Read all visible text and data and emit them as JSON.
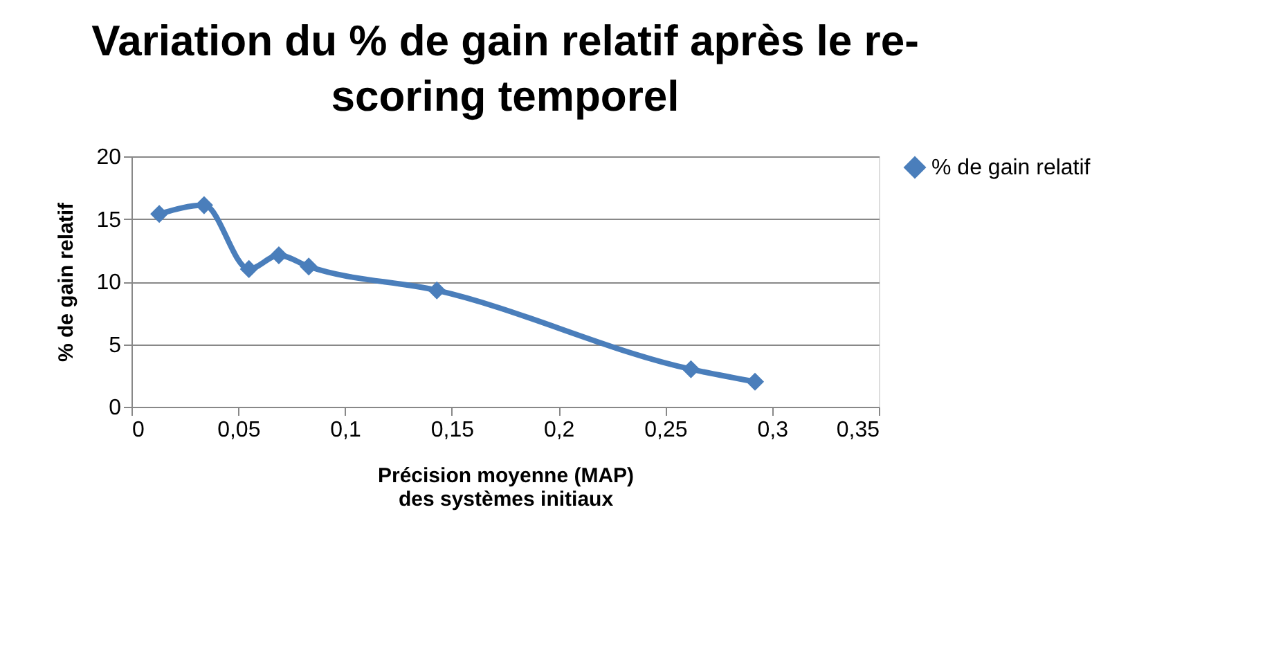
{
  "chart_data": {
    "type": "line",
    "title": "Variation du % de gain relatif après le re-scoring temporel",
    "xlabel": "Précision moyenne (MAP) des systèmes initiaux",
    "ylabel": "% de gain relatif",
    "x": [
      0.013,
      0.034,
      0.055,
      0.069,
      0.083,
      0.143,
      0.262,
      0.292
    ],
    "series": [
      {
        "name": "% de gain relatif",
        "color": "#4a7ebb",
        "values": [
          15.4,
          16.1,
          11.0,
          12.1,
          11.2,
          9.3,
          3.0,
          2.0
        ]
      }
    ],
    "xlim": [
      0,
      0.35
    ],
    "xticks": [
      0,
      {
        "value": 0.05,
        "label": "0,05"
      },
      {
        "value": 0.1,
        "label": "0,1"
      },
      {
        "value": 0.15,
        "label": "0,15"
      },
      {
        "value": 0.2,
        "label": "0,2"
      },
      {
        "value": 0.25,
        "label": "0,25"
      },
      {
        "value": 0.3,
        "label": "0,3"
      },
      {
        "value": 0.35,
        "label": "0,35"
      }
    ],
    "ylim": [
      0,
      20
    ],
    "yticks": [
      0,
      5,
      10,
      15,
      20
    ],
    "grid": "y",
    "legend": "right",
    "marker": "diamond",
    "line_style": "solid"
  }
}
